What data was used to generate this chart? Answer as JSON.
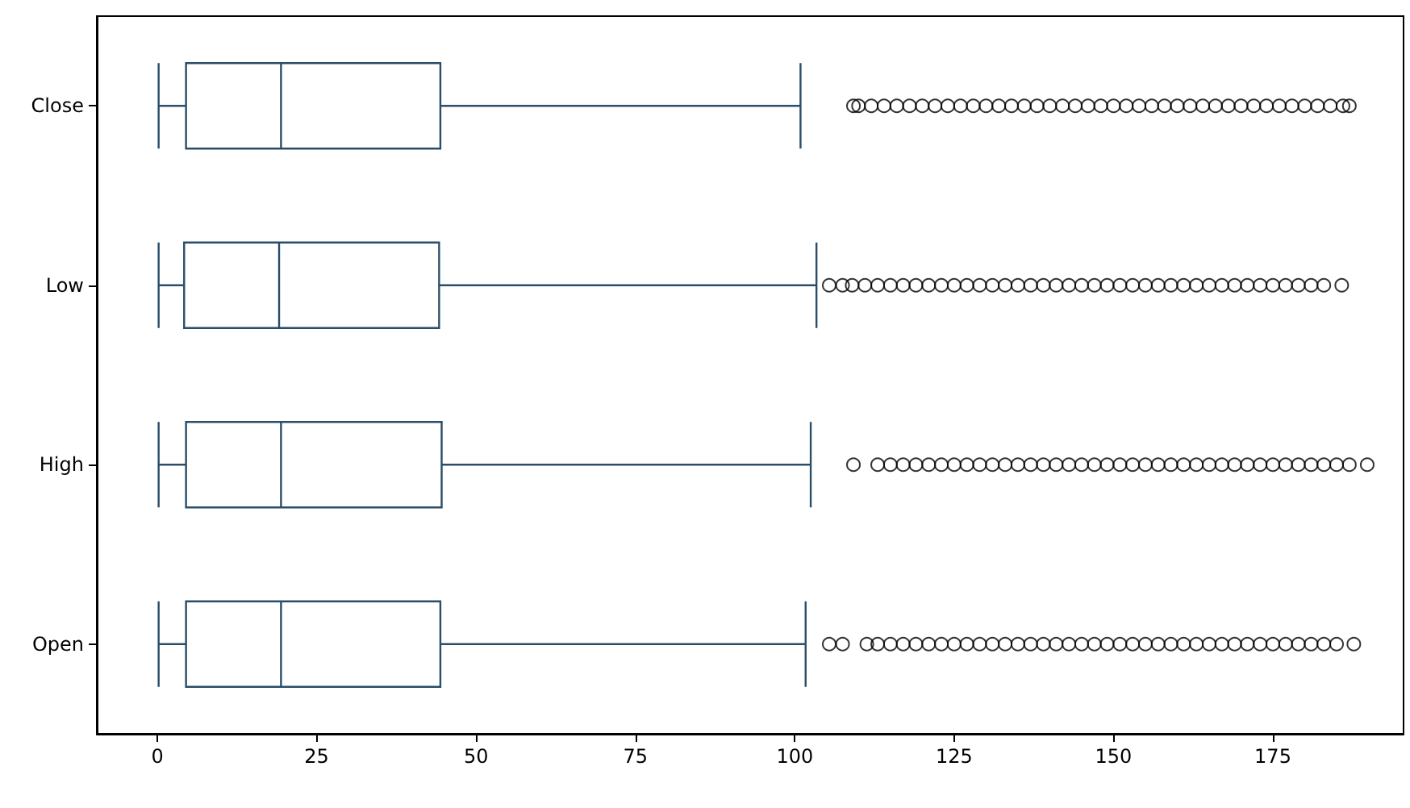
{
  "chart_data": {
    "type": "box",
    "orientation": "horizontal",
    "color": "#2a4d69",
    "marker": "circle",
    "grid": false,
    "categories": [
      "Close",
      "Low",
      "High",
      "Open"
    ],
    "xlim": [
      -9.5,
      195.5
    ],
    "xticks": [
      0,
      25,
      50,
      75,
      100,
      125,
      150,
      175
    ],
    "boxes": [
      {
        "low": 0.2,
        "q1": 4.5,
        "median": 19.4,
        "q3": 44.4,
        "high": 100.9,
        "outliers": [
          109.2,
          110,
          112,
          114,
          116,
          118,
          120,
          122,
          124,
          126,
          128,
          130,
          132,
          134,
          136,
          138,
          140,
          142,
          144,
          146,
          148,
          150,
          152,
          154,
          156,
          158,
          160,
          162,
          164,
          166,
          168,
          170,
          172,
          174,
          176,
          178,
          180,
          182,
          184,
          186,
          187
        ]
      },
      {
        "low": 0.2,
        "q1": 4.2,
        "median": 19.1,
        "q3": 44.2,
        "high": 103.4,
        "outliers": [
          105.4,
          107.5,
          109,
          111,
          113,
          115,
          117,
          119,
          121,
          123,
          125,
          127,
          129,
          131,
          133,
          135,
          137,
          139,
          141,
          143,
          145,
          147,
          149,
          151,
          153,
          155,
          157,
          159,
          161,
          163,
          165,
          167,
          169,
          171,
          173,
          175,
          177,
          179,
          181,
          183,
          185.8
        ]
      },
      {
        "low": 0.2,
        "q1": 4.5,
        "median": 19.4,
        "q3": 44.6,
        "high": 102.5,
        "outliers": [
          109.2,
          113,
          115,
          117,
          119,
          121,
          123,
          125,
          127,
          129,
          131,
          133,
          135,
          137,
          139,
          141,
          143,
          145,
          147,
          149,
          151,
          153,
          155,
          157,
          159,
          161,
          163,
          165,
          167,
          169,
          171,
          173,
          175,
          177,
          179,
          181,
          183,
          185,
          187,
          189.8
        ]
      },
      {
        "low": 0.2,
        "q1": 4.5,
        "median": 19.4,
        "q3": 44.4,
        "high": 101.7,
        "outliers": [
          105.4,
          107.5,
          111.3,
          113,
          115,
          117,
          119,
          121,
          123,
          125,
          127,
          129,
          131,
          133,
          135,
          137,
          139,
          141,
          143,
          145,
          147,
          149,
          151,
          153,
          155,
          157,
          159,
          161,
          163,
          165,
          167,
          169,
          171,
          173,
          175,
          177,
          179,
          181,
          183,
          185,
          187.7
        ]
      }
    ]
  }
}
